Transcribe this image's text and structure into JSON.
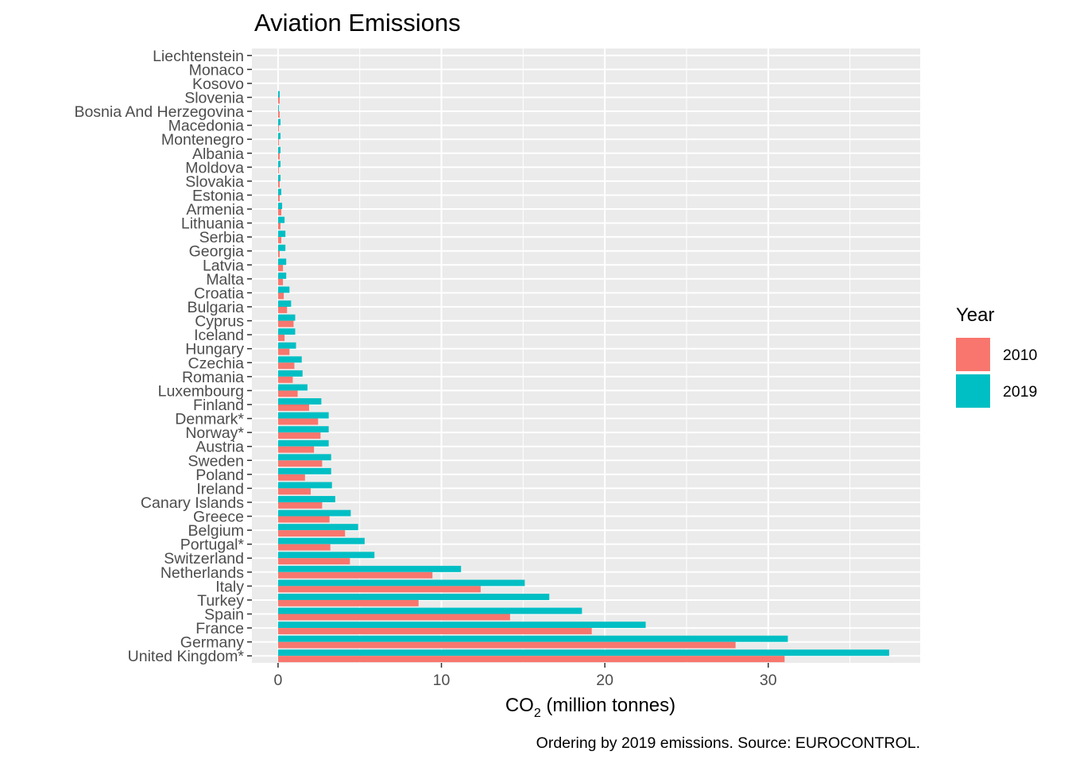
{
  "chart_data": {
    "type": "bar",
    "orientation": "horizontal",
    "title": "Aviation Emissions",
    "xlabel_main": "CO",
    "xlabel_sub": "2",
    "xlabel_rest": " (million tonnes)",
    "caption": "Ordering by 2019 emissions. Source: EUROCONTROL.",
    "legend_title": "Year",
    "legend_position": "right",
    "grid": true,
    "xlim": [
      -1.6,
      39.3
    ],
    "xticks": [
      0,
      10,
      20,
      30
    ],
    "categories": [
      "Liechtenstein",
      "Monaco",
      "Kosovo",
      "Slovenia",
      "Bosnia And Herzegovina",
      "Macedonia",
      "Montenegro",
      "Albania",
      "Moldova",
      "Slovakia",
      "Estonia",
      "Armenia",
      "Lithuania",
      "Serbia",
      "Georgia",
      "Latvia",
      "Malta",
      "Croatia",
      "Bulgaria",
      "Cyprus",
      "Iceland",
      "Hungary",
      "Czechia",
      "Romania",
      "Luxembourg",
      "Finland",
      "Denmark*",
      "Norway*",
      "Austria",
      "Sweden",
      "Poland",
      "Ireland",
      "Canary Islands",
      "Greece",
      "Belgium",
      "Portugal*",
      "Switzerland",
      "Netherlands",
      "Italy",
      "Turkey",
      "Spain",
      "France",
      "Germany",
      "United Kingdom*"
    ],
    "series": [
      {
        "name": "2010",
        "color": "#F8766D",
        "values": [
          0.0,
          0.0,
          0.0,
          0.1,
          0.1,
          0.05,
          0.05,
          0.1,
          0.05,
          0.1,
          0.1,
          0.2,
          0.15,
          0.2,
          0.1,
          0.3,
          0.3,
          0.35,
          0.55,
          0.95,
          0.4,
          0.7,
          1.0,
          0.9,
          1.2,
          1.9,
          2.45,
          2.6,
          2.2,
          2.7,
          1.65,
          2.0,
          2.7,
          3.15,
          4.1,
          3.2,
          4.4,
          9.45,
          12.4,
          8.6,
          14.2,
          19.2,
          28.0,
          31.0
        ]
      },
      {
        "name": "2019",
        "color": "#00BFC4",
        "values": [
          0.0,
          0.0,
          0.0,
          0.1,
          0.05,
          0.15,
          0.15,
          0.15,
          0.15,
          0.15,
          0.2,
          0.25,
          0.4,
          0.45,
          0.45,
          0.5,
          0.5,
          0.7,
          0.8,
          1.05,
          1.05,
          1.1,
          1.45,
          1.5,
          1.8,
          2.65,
          3.1,
          3.1,
          3.1,
          3.25,
          3.25,
          3.3,
          3.5,
          4.45,
          4.9,
          5.3,
          5.9,
          11.2,
          15.1,
          16.6,
          18.6,
          22.5,
          31.2,
          37.4
        ]
      }
    ]
  }
}
